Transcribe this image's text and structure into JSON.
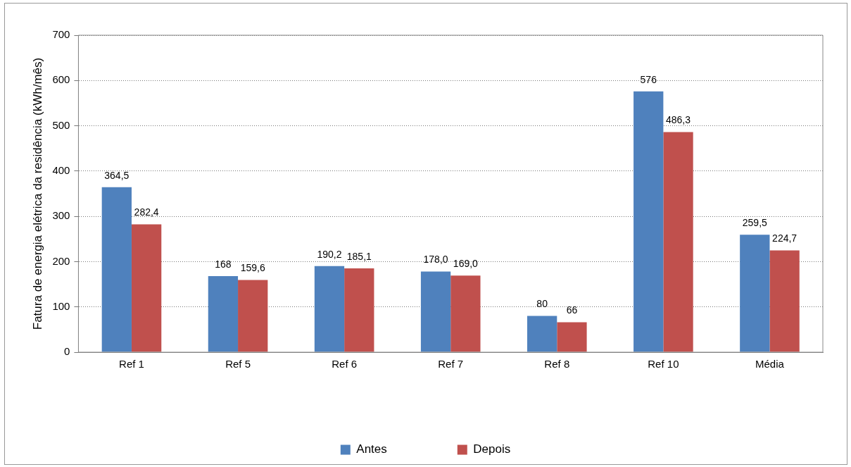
{
  "chart_data": {
    "type": "bar",
    "ylabel": "Fatura de energia elétrica da residência (kWh/mês)",
    "categories": [
      "Ref 1",
      "Ref 5",
      "Ref 6",
      "Ref 7",
      "Ref 8",
      "Ref 10",
      "Média"
    ],
    "series": [
      {
        "name": "Antes",
        "color": "#4f81bd",
        "values": [
          364.5,
          168,
          190.2,
          178,
          80,
          576,
          259.5
        ],
        "value_labels": [
          "364,5",
          "168",
          "190,2",
          "178,0",
          "80",
          "576",
          "259,5"
        ]
      },
      {
        "name": "Depois",
        "color": "#c0504d",
        "values": [
          282.4,
          159.6,
          185.1,
          169,
          66,
          486.3,
          224.7
        ],
        "value_labels": [
          "282,4",
          "159,6",
          "185,1",
          "169,0",
          "66",
          "486,3",
          "224,7"
        ]
      }
    ],
    "ylim": [
      0,
      700
    ],
    "yticks": [
      0,
      100,
      200,
      300,
      400,
      500,
      600,
      700
    ],
    "grid": "y",
    "legend": "bottom"
  }
}
